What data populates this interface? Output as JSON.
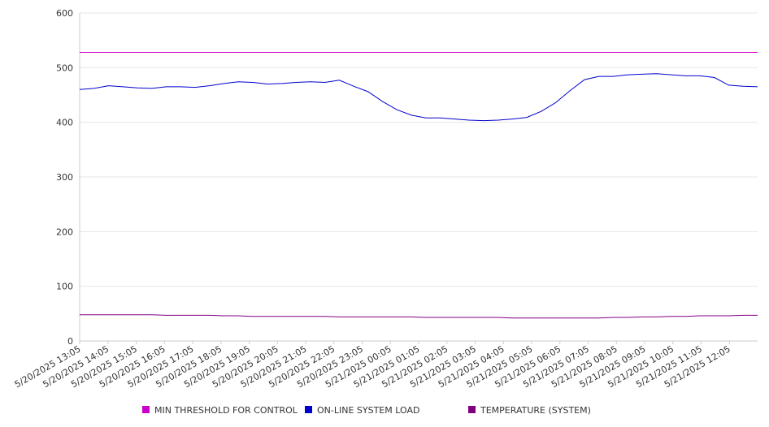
{
  "chart_data": {
    "type": "line",
    "title": "",
    "xlabel": "",
    "ylabel": "",
    "ylim": [
      0,
      600
    ],
    "y_ticks": [
      "0",
      "100",
      "200",
      "300",
      "400",
      "500",
      "600"
    ],
    "grid": true,
    "legend_position": "bottom",
    "x_ticks": [
      "5/20/2025 13:05",
      "5/20/2025 14:05",
      "5/20/2025 15:05",
      "5/20/2025 16:05",
      "5/20/2025 17:05",
      "5/20/2025 18:05",
      "5/20/2025 19:05",
      "5/20/2025 20:05",
      "5/20/2025 21:05",
      "5/20/2025 22:05",
      "5/20/2025 23:05",
      "5/21/2025 00:05",
      "5/21/2025 01:05",
      "5/21/2025 02:05",
      "5/21/2025 03:05",
      "5/21/2025 04:05",
      "5/21/2025 05:05",
      "5/21/2025 06:05",
      "5/21/2025 07:05",
      "5/21/2025 08:05",
      "5/21/2025 09:05",
      "5/21/2025 10:05",
      "5/21/2025 11:05",
      "5/21/2025 12:05"
    ],
    "x_hours": [
      "13:05",
      "13:30",
      "14:05",
      "14:30",
      "15:05",
      "15:30",
      "16:05",
      "16:30",
      "17:05",
      "17:30",
      "18:05",
      "18:30",
      "19:05",
      "19:30",
      "20:05",
      "20:30",
      "21:05",
      "21:30",
      "22:05",
      "22:30",
      "23:05",
      "23:30",
      "00:05",
      "00:30",
      "01:05",
      "01:30",
      "02:05",
      "02:30",
      "03:05",
      "03:30",
      "04:05",
      "04:30",
      "05:05",
      "05:30",
      "06:05",
      "06:30",
      "07:05",
      "07:30",
      "08:05",
      "08:30",
      "09:05",
      "09:30",
      "10:05",
      "10:30",
      "11:05",
      "11:30",
      "12:05",
      "12:35"
    ],
    "series": [
      {
        "name": "MIN THRESHOLD FOR CONTROL",
        "color": "#cc00cc",
        "values": [
          528,
          528,
          528,
          528,
          528,
          528,
          528,
          528,
          528,
          528,
          528,
          528,
          528,
          528,
          528,
          528,
          528,
          528,
          528,
          528,
          528,
          528,
          528,
          528,
          528,
          528,
          528,
          528,
          528,
          528,
          528,
          528,
          528,
          528,
          528,
          528,
          528,
          528,
          528,
          528,
          528,
          528,
          528,
          528,
          528,
          528,
          528,
          528
        ]
      },
      {
        "name": "ON-LINE SYSTEM LOAD",
        "color": "#0000cc",
        "values": [
          460,
          462,
          467,
          465,
          463,
          462,
          465,
          465,
          464,
          467,
          471,
          474,
          473,
          470,
          471,
          473,
          474,
          473,
          477,
          466,
          456,
          438,
          423,
          413,
          408,
          408,
          406,
          404,
          403,
          404,
          406,
          409,
          420,
          436,
          458,
          478,
          484,
          484,
          487,
          488,
          489,
          487,
          485,
          485,
          482,
          468,
          466,
          465
        ]
      },
      {
        "name": "TEMPERATURE (SYSTEM)",
        "color": "#800080",
        "values": [
          48,
          48,
          48,
          48,
          48,
          48,
          47,
          47,
          47,
          47,
          46,
          46,
          45,
          45,
          45,
          45,
          45,
          45,
          44,
          44,
          44,
          44,
          44,
          44,
          43,
          43,
          43,
          43,
          43,
          43,
          42,
          42,
          42,
          42,
          42,
          42,
          42,
          43,
          43,
          44,
          44,
          45,
          45,
          46,
          46,
          46,
          47,
          47
        ]
      }
    ]
  }
}
